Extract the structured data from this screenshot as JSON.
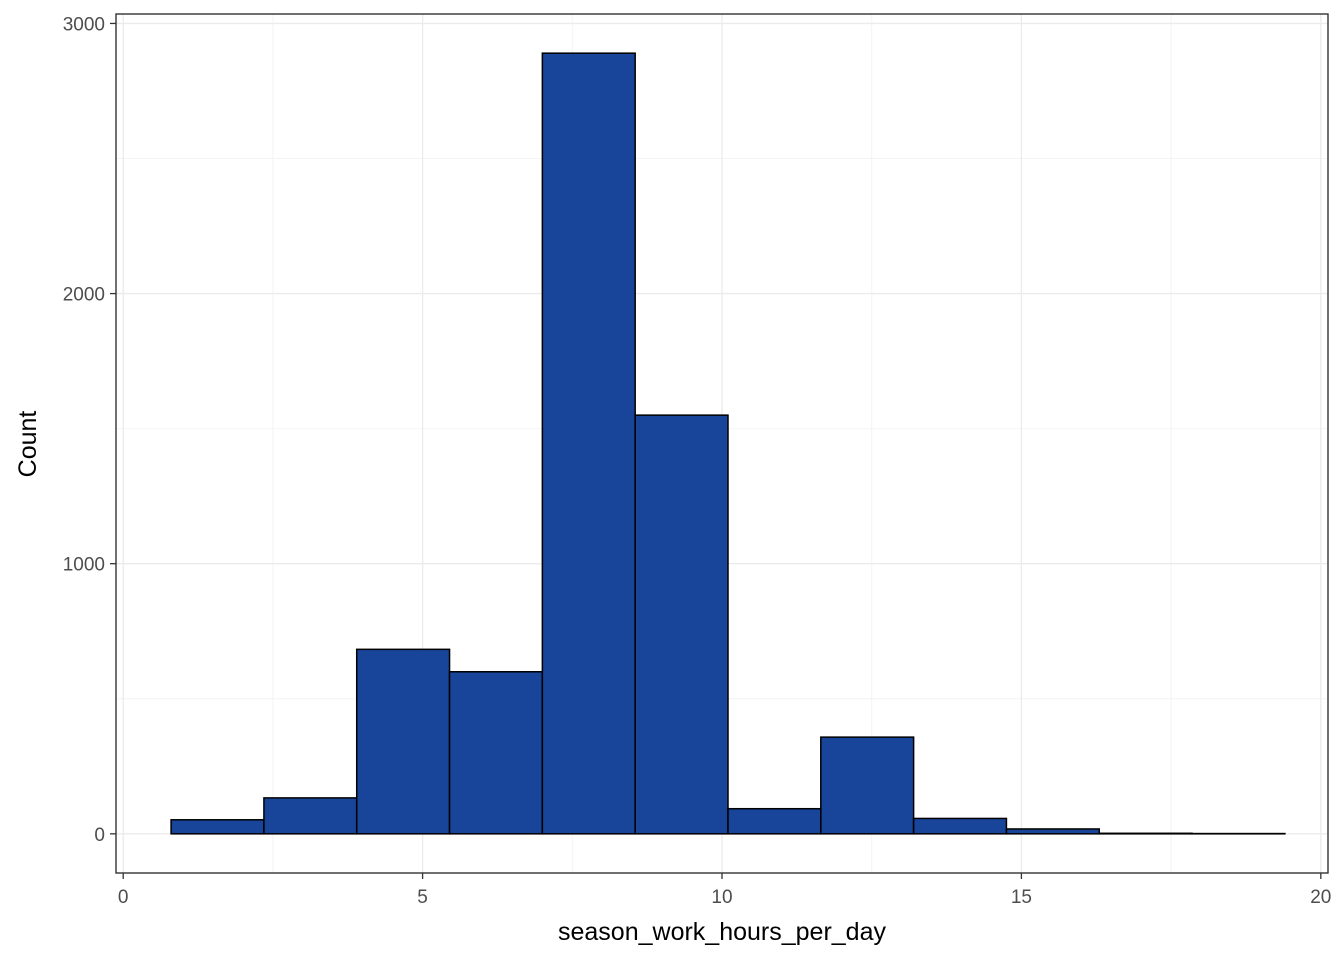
{
  "chart_data": {
    "type": "bar",
    "title": "",
    "xlabel": "season_work_hours_per_day",
    "ylabel": "Count",
    "xlim": [
      -0.12,
      20.12
    ],
    "ylim": [
      -145,
      3035
    ],
    "x_ticks": [
      0,
      5,
      10,
      15,
      20
    ],
    "x_tick_labels": [
      "0",
      "5",
      "10",
      "15",
      "20"
    ],
    "y_ticks": [
      0,
      1000,
      2000,
      3000
    ],
    "y_tick_labels": [
      "0",
      "1000",
      "2000",
      "3000"
    ],
    "x_minor_gridlines": [
      2.5,
      7.5,
      12.5,
      17.5
    ],
    "y_minor_gridlines": [
      500,
      1500,
      2500
    ],
    "grid": true,
    "bins": [
      {
        "x0": 0.8,
        "x1": 2.35,
        "count": 52
      },
      {
        "x0": 2.35,
        "x1": 3.9,
        "count": 133
      },
      {
        "x0": 3.9,
        "x1": 5.45,
        "count": 683
      },
      {
        "x0": 5.45,
        "x1": 7.0,
        "count": 600
      },
      {
        "x0": 7.0,
        "x1": 8.55,
        "count": 2890
      },
      {
        "x0": 8.55,
        "x1": 10.1,
        "count": 1550
      },
      {
        "x0": 10.1,
        "x1": 11.65,
        "count": 93
      },
      {
        "x0": 11.65,
        "x1": 13.2,
        "count": 358
      },
      {
        "x0": 13.2,
        "x1": 14.75,
        "count": 57
      },
      {
        "x0": 14.75,
        "x1": 16.3,
        "count": 18
      },
      {
        "x0": 16.3,
        "x1": 17.85,
        "count": 2
      },
      {
        "x0": 17.85,
        "x1": 19.4,
        "count": 1
      }
    ],
    "colors": {
      "bar_fill": "#18449a",
      "bar_stroke": "#000000",
      "grid_major": "#ebebeb",
      "grid_minor": "#f4f4f4",
      "panel_border": "#333333"
    }
  }
}
